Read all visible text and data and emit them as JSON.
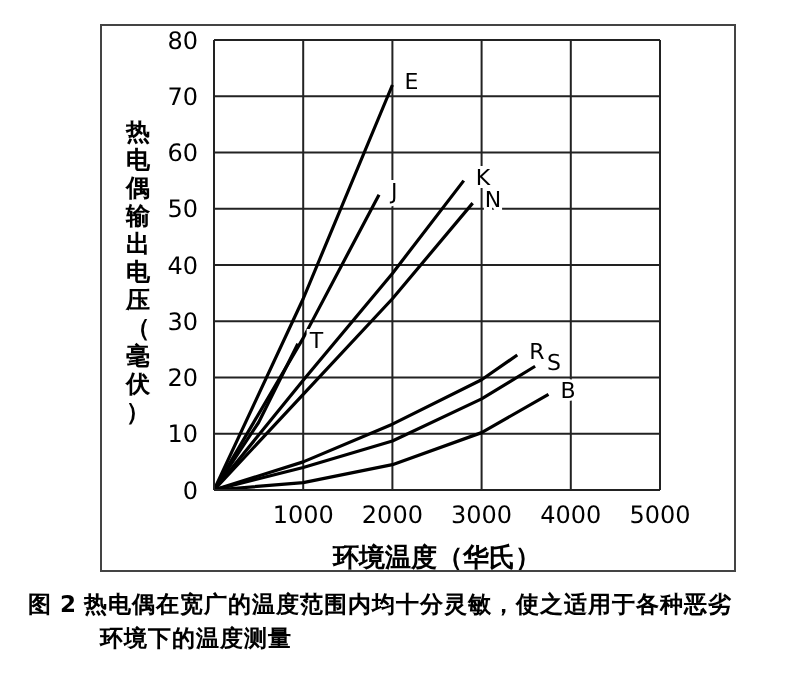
{
  "chart_data": {
    "type": "line",
    "xlabel": "环境温度（华氏）",
    "ylabel": "热电偶输出电压（毫伏）",
    "xlim": [
      0,
      5000
    ],
    "xticks": [
      {
        "value": 0,
        "label": null
      },
      1000,
      2000,
      3000,
      4000,
      5000
    ],
    "ylim": [
      0,
      80
    ],
    "yticks": [
      0,
      10,
      20,
      30,
      40,
      50,
      60,
      70,
      80
    ],
    "grid": true,
    "legend": false,
    "marker": "none",
    "line_style": "solid",
    "series": [
      {
        "name": "E",
        "color": "#000000",
        "x": [
          0,
          1000,
          2000
        ],
        "values": [
          0,
          34,
          72
        ]
      },
      {
        "name": "J",
        "color": "#000000",
        "x": [
          0,
          1000,
          1850
        ],
        "values": [
          0,
          27,
          52.5
        ]
      },
      {
        "name": "T",
        "color": "#000000",
        "x": [
          0,
          500,
          940
        ],
        "values": [
          0,
          12,
          26
        ]
      },
      {
        "name": "K",
        "color": "#000000",
        "x": [
          0,
          1000,
          2000,
          2800
        ],
        "values": [
          0,
          19.5,
          38.5,
          55
        ]
      },
      {
        "name": "N",
        "color": "#000000",
        "x": [
          0,
          1000,
          2000,
          2900
        ],
        "values": [
          0,
          17,
          34,
          51
        ]
      },
      {
        "name": "R",
        "color": "#000000",
        "x": [
          0,
          1000,
          2000,
          3000,
          3400
        ],
        "values": [
          0,
          5,
          11.7,
          19.6,
          24
        ]
      },
      {
        "name": "S",
        "color": "#000000",
        "x": [
          0,
          1000,
          2000,
          3000,
          3600
        ],
        "values": [
          0,
          4,
          8.7,
          16.2,
          22
        ]
      },
      {
        "name": "B",
        "color": "#000000",
        "x": [
          0,
          1000,
          2000,
          3000,
          3750
        ],
        "values": [
          0,
          1.3,
          4.5,
          10.2,
          17
        ]
      }
    ],
    "annotations": [
      "图 2  热电偶在宽广的温度范围内均十分灵敏，使之适用于各种恶劣环境下的温度测量"
    ]
  }
}
